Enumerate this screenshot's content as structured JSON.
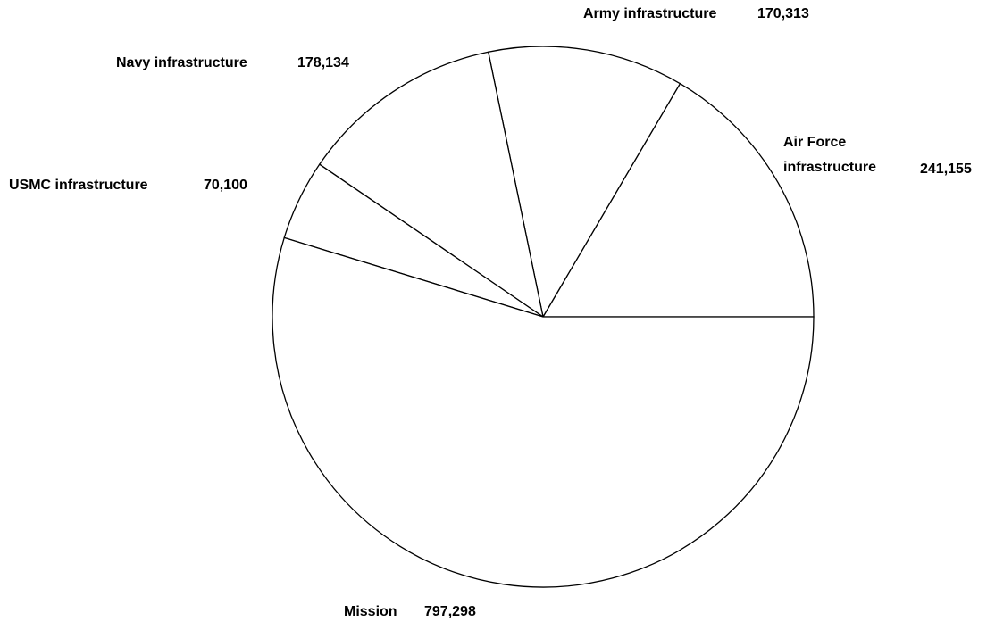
{
  "chart_data": {
    "type": "pie",
    "categories": [
      "Air Force infrastructure",
      "Army infrastructure",
      "Navy infrastructure",
      "USMC infrastructure",
      "Mission"
    ],
    "values": [
      241155,
      170313,
      178134,
      70100,
      797298
    ],
    "value_labels": [
      "241,155",
      "170,313",
      "178,134",
      "70,100",
      "797,298"
    ],
    "color": "#ffffff",
    "edge_color": "#000000"
  }
}
